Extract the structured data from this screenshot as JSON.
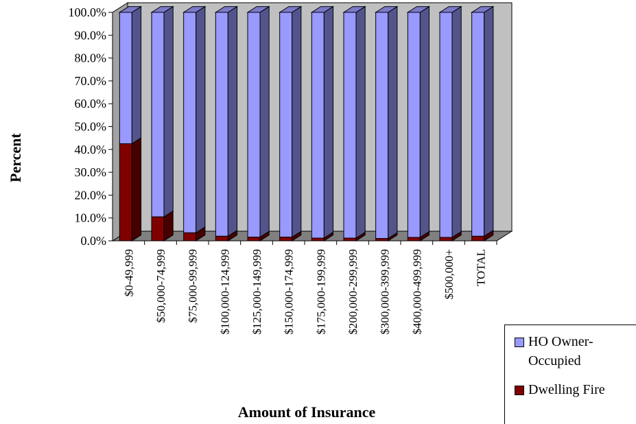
{
  "chart_data": {
    "type": "bar",
    "stacked": true,
    "three_d": true,
    "ylabel": "Percent",
    "xlabel": "Amount of Insurance",
    "ylim": [
      0,
      100
    ],
    "yticks": [
      "0.0%",
      "10.0%",
      "20.0%",
      "30.0%",
      "40.0%",
      "50.0%",
      "60.0%",
      "70.0%",
      "80.0%",
      "90.0%",
      "100.0%"
    ],
    "categories": [
      "$0-49,999",
      "$50,000-74,999",
      "$75,000-99,999",
      "$100,000-124,999",
      "$125,000-149,999",
      "$150,000-174,999",
      "$175,000-199,999",
      "$200,000-299,999",
      "$300,000-399,999",
      "$400,000-499,999",
      "$500,000+",
      "TOTAL"
    ],
    "series": [
      {
        "name": "Dwelling Fire",
        "values": [
          42.5,
          10.5,
          3.5,
          2.0,
          1.6,
          1.6,
          1.2,
          1.2,
          1.0,
          1.5,
          1.5,
          2.0
        ]
      },
      {
        "name": "HO Owner-Occupied",
        "values": [
          57.5,
          89.5,
          96.5,
          98.0,
          98.4,
          98.4,
          98.8,
          98.8,
          99.0,
          98.5,
          98.5,
          98.0
        ]
      }
    ],
    "legend": "bottom-right",
    "grid": false,
    "colors": {
      "Dwelling Fire": "#800000",
      "HO Owner-Occupied": "#9999ff",
      "wall": "#c0c0c0",
      "floor": "#808080"
    }
  },
  "legend": {
    "ho_line1": "HO Owner-",
    "ho_line2": "Occupied",
    "dwelling": "Dwelling Fire"
  }
}
